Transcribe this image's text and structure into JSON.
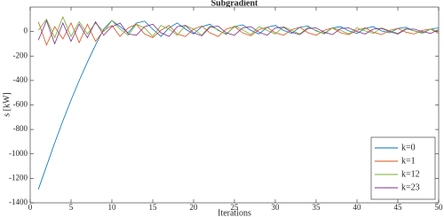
{
  "chart_data": {
    "type": "line",
    "title": "Subgradient",
    "x_label": "Iterations",
    "y_label": "s [kW]",
    "x": [
      1,
      2,
      3,
      4,
      5,
      6,
      7,
      8,
      9,
      10,
      11,
      12,
      13,
      14,
      15,
      16,
      17,
      18,
      19,
      20,
      21,
      22,
      23,
      24,
      25,
      26,
      27,
      28,
      29,
      30,
      31,
      32,
      33,
      34,
      35,
      36,
      37,
      38,
      39,
      40,
      41,
      42,
      43,
      44,
      45,
      46,
      47,
      48,
      49,
      50
    ],
    "series": [
      {
        "name": "k=0",
        "color": "#0072bd",
        "values": [
          -1290,
          -1100,
          -910,
          -730,
          -560,
          -400,
          -250,
          -110,
          20,
          90,
          40,
          -10,
          70,
          85,
          20,
          -40,
          30,
          70,
          20,
          -20,
          40,
          60,
          10,
          -20,
          40,
          55,
          10,
          -20,
          35,
          50,
          10,
          -15,
          35,
          45,
          5,
          -15,
          30,
          40,
          5,
          -15,
          25,
          40,
          5,
          -10,
          25,
          35,
          5,
          -10,
          20,
          30
        ]
      },
      {
        "name": "k=1",
        "color": "#d95319",
        "values": [
          80,
          -110,
          40,
          -60,
          70,
          -90,
          60,
          -80,
          10,
          50,
          -40,
          30,
          60,
          -20,
          -50,
          10,
          50,
          -20,
          -40,
          20,
          45,
          -10,
          -40,
          20,
          40,
          -10,
          -35,
          15,
          35,
          -10,
          -30,
          15,
          35,
          -10,
          -30,
          10,
          30,
          -10,
          -25,
          10,
          30,
          -5,
          -25,
          10,
          25,
          -5,
          -20,
          10,
          20,
          -15
        ]
      },
      {
        "name": "k=12",
        "color": "#77ac30",
        "values": [
          10,
          100,
          -50,
          120,
          -40,
          80,
          -20,
          70,
          0,
          90,
          20,
          -30,
          60,
          30,
          -40,
          50,
          20,
          -30,
          50,
          20,
          -30,
          45,
          15,
          -25,
          45,
          15,
          -25,
          40,
          10,
          -20,
          40,
          10,
          -20,
          35,
          10,
          -20,
          30,
          10,
          -20,
          30,
          5,
          -15,
          30,
          5,
          -15,
          25,
          5,
          -15,
          20,
          0
        ]
      },
      {
        "name": "k=23",
        "color": "#7e2f8e",
        "values": [
          -70,
          90,
          -100,
          70,
          -80,
          60,
          -50,
          80,
          -30,
          40,
          70,
          -20,
          -30,
          40,
          60,
          -10,
          -40,
          40,
          50,
          -10,
          -35,
          35,
          45,
          -10,
          -30,
          30,
          40,
          -5,
          -30,
          30,
          35,
          -5,
          -25,
          25,
          30,
          -5,
          -25,
          25,
          30,
          0,
          -20,
          20,
          25,
          0,
          -20,
          20,
          20,
          0,
          -15,
          15
        ]
      }
    ],
    "xlim": [
      0,
      50
    ],
    "xticks": [
      0,
      5,
      10,
      15,
      20,
      25,
      30,
      35,
      40,
      45,
      50
    ],
    "ylim": [
      -1400,
      200
    ],
    "yticks": [
      -1400,
      -1200,
      -1000,
      -800,
      -600,
      -400,
      -200,
      0
    ],
    "grid": false,
    "legend_position": "southeast"
  }
}
